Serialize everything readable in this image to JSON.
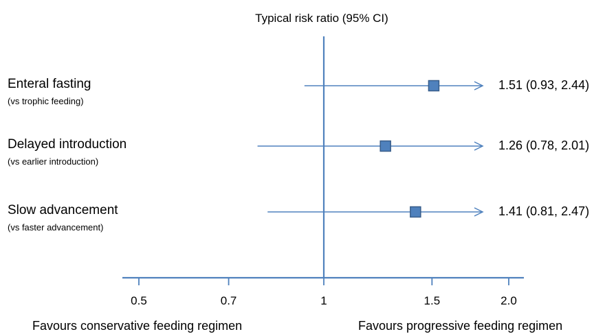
{
  "chart_data": {
    "type": "forest",
    "title": "Typical risk ratio (95% CI)",
    "x_scale": "log",
    "xlim": [
      0.46,
      2.2
    ],
    "reference_line": 1,
    "x_ticks": [
      0.5,
      0.7,
      1,
      1.5,
      2.0
    ],
    "x_tick_labels": [
      "0.5",
      "0.7",
      "1",
      "1.5",
      "2.0"
    ],
    "rows": [
      {
        "label": "Enteral fasting",
        "sublabel": "(vs trophic feeding)",
        "estimate": 1.51,
        "ci_low": 0.93,
        "ci_high": 2.44,
        "ci_text": "1.51 (0.93, 2.44)"
      },
      {
        "label": "Delayed introduction",
        "sublabel": "(vs earlier introduction)",
        "estimate": 1.26,
        "ci_low": 0.78,
        "ci_high": 2.01,
        "ci_text": "1.26 (0.78, 2.01)"
      },
      {
        "label": "Slow advancement",
        "sublabel": "(vs faster advancement)",
        "estimate": 1.41,
        "ci_low": 0.81,
        "ci_high": 2.47,
        "ci_text": "1.41 (0.81, 2.47)"
      }
    ],
    "favours_left": "Favours conservative feeding regimen",
    "favours_right": "Favours progressive feeding regimen",
    "colors": {
      "line": "#4f81bd",
      "marker_fill": "#4f81bd",
      "marker_stroke": "#385d8a"
    }
  }
}
